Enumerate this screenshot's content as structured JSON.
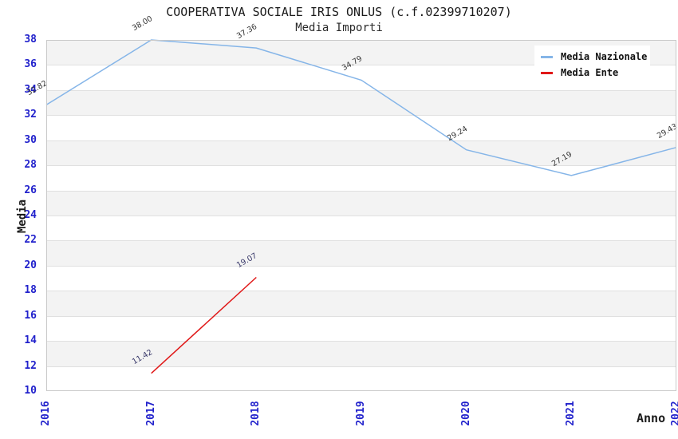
{
  "chart_data": {
    "type": "line",
    "title": "COOPERATIVA SOCIALE IRIS ONLUS (c.f.02399710207)",
    "subtitle": "Media Importi",
    "xlabel": "Anno",
    "ylabel": "Media",
    "categories": [
      2016,
      2017,
      2018,
      2019,
      2020,
      2021,
      2022
    ],
    "ylim": [
      10,
      38
    ],
    "ytick_step": 2,
    "grid": "horizontal-alternating-bands",
    "legend_position": "top-right",
    "series": [
      {
        "name": "Media Nazionale",
        "color": "#85b5e8",
        "label_color": "#333333",
        "x": [
          2016,
          2017,
          2018,
          2019,
          2020,
          2021,
          2022
        ],
        "values": [
          32.82,
          38.0,
          37.36,
          34.79,
          29.24,
          27.19,
          29.43
        ],
        "point_labels": [
          "32.82",
          "38.00",
          "37.36",
          "34.79",
          "29.24",
          "27.19",
          "29.43"
        ]
      },
      {
        "name": "Media Ente",
        "color": "#e01818",
        "label_color": "#333366",
        "x": [
          2017,
          2018
        ],
        "values": [
          11.42,
          19.07
        ],
        "point_labels": [
          "11.42",
          "19.07"
        ]
      }
    ],
    "colors": {
      "tick_label": "#2222cc",
      "band_gray": "#f3f3f3",
      "gridline": "#e0e0e0",
      "plot_border": "#c9c9c9",
      "title_text": "#1a1a1a"
    }
  }
}
